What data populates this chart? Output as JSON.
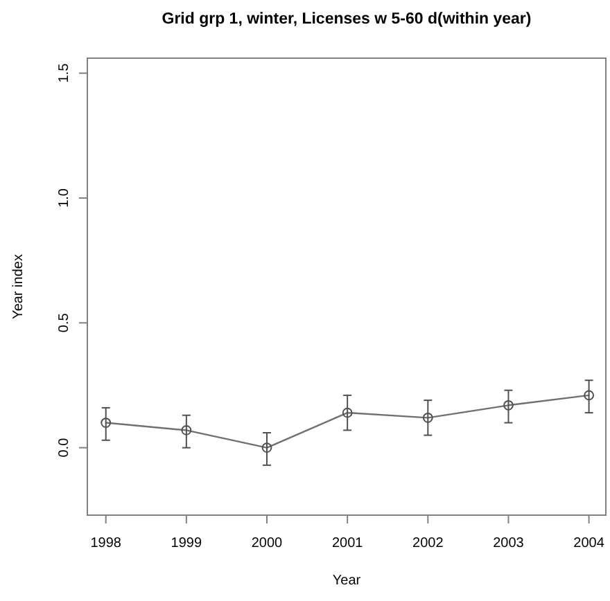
{
  "chart_data": {
    "type": "line",
    "title": "Grid grp 1, winter, Licenses w 5-60 d(within year)",
    "xlabel": "Year",
    "ylabel": "Year index",
    "x": [
      1998,
      1999,
      2000,
      2001,
      2002,
      2003,
      2004
    ],
    "series": [
      {
        "color": "#707070",
        "values": [
          0.1,
          0.07,
          0.0,
          0.14,
          0.12,
          0.17,
          0.21
        ],
        "errors": [
          [
            0.03,
            0.16
          ],
          [
            0.0,
            0.13
          ],
          [
            -0.07,
            0.06
          ],
          [
            0.07,
            0.21
          ],
          [
            0.05,
            0.19
          ],
          [
            0.1,
            0.23
          ],
          [
            0.14,
            0.27
          ]
        ]
      }
    ],
    "xlim": [
      1997.77,
      2004.21
    ],
    "ylim": [
      -0.27,
      1.56
    ],
    "xticks": [
      1998,
      1999,
      2000,
      2001,
      2002,
      2003,
      2004
    ],
    "yticks": [
      {
        "value": 0,
        "label": "0.0"
      },
      0.5,
      {
        "value": 1,
        "label": "1.0"
      },
      1.5
    ],
    "marker": "circle",
    "line_style": "solid",
    "grid": false
  }
}
